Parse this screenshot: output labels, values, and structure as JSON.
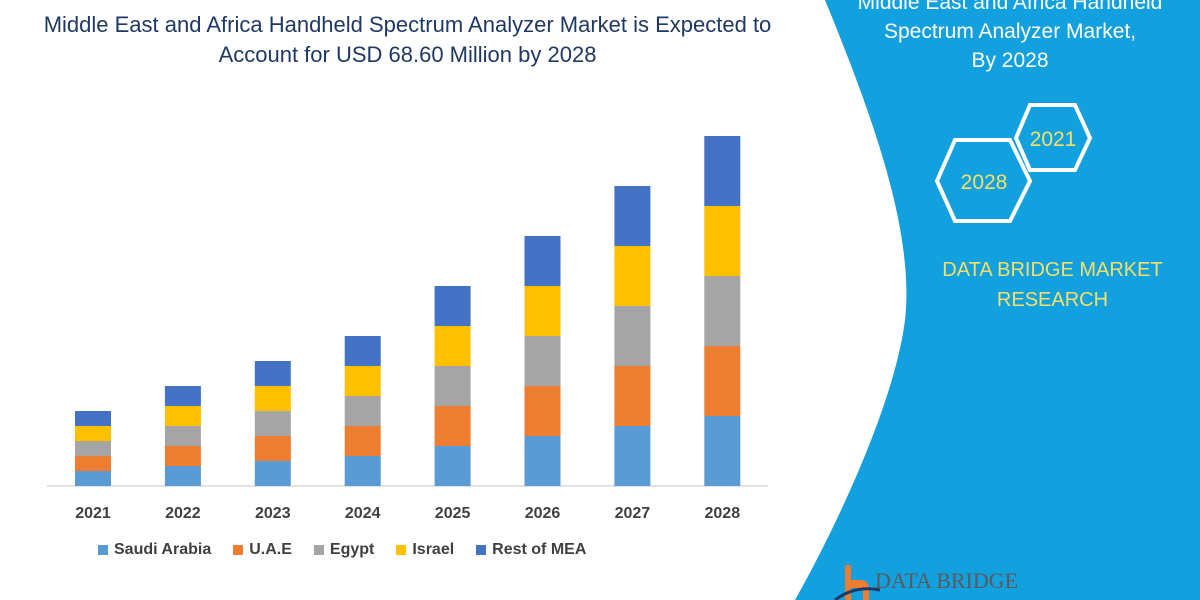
{
  "header": {
    "title_line1": "Middle East and Africa Handheld Spectrum Analyzer Market is Expected to",
    "title_line2": "Account for USD 68.60 Million by 2028"
  },
  "side_panel": {
    "title_line0": "Middle East and Africa Handheld",
    "title_line1": "Spectrum Analyzer Market,",
    "title_line2": "By 2028",
    "hex_a": "2021",
    "hex_b": "2028",
    "brand_line1": "DATA BRIDGE MARKET",
    "brand_line2": "RESEARCH",
    "logo_text": "DATA BRIDGE",
    "color": "#12a0df"
  },
  "chart_data": {
    "type": "bar",
    "stacked": true,
    "title": "",
    "xlabel": "",
    "ylabel": "",
    "grid": false,
    "legend_position": "bottom",
    "note_values": "relative segment sizes estimated from bar heights; no y-axis printed",
    "categories": [
      "2021",
      "2022",
      "2023",
      "2024",
      "2025",
      "2026",
      "2027",
      "2028"
    ],
    "series": [
      {
        "name": "Saudi Arabia",
        "color": "#5b9bd5",
        "values": [
          15,
          20,
          25,
          30,
          40,
          50,
          60,
          70
        ]
      },
      {
        "name": "U.A.E",
        "color": "#ed7d31",
        "values": [
          15,
          20,
          25,
          30,
          40,
          50,
          60,
          70
        ]
      },
      {
        "name": "Egypt",
        "color": "#a5a5a5",
        "values": [
          15,
          20,
          25,
          30,
          40,
          50,
          60,
          70
        ]
      },
      {
        "name": "Israel",
        "color": "#ffc000",
        "values": [
          15,
          20,
          25,
          30,
          40,
          50,
          60,
          70
        ]
      },
      {
        "name": "Rest of MEA",
        "color": "#4472c4",
        "values": [
          15,
          20,
          25,
          30,
          40,
          50,
          60,
          70
        ]
      }
    ]
  }
}
